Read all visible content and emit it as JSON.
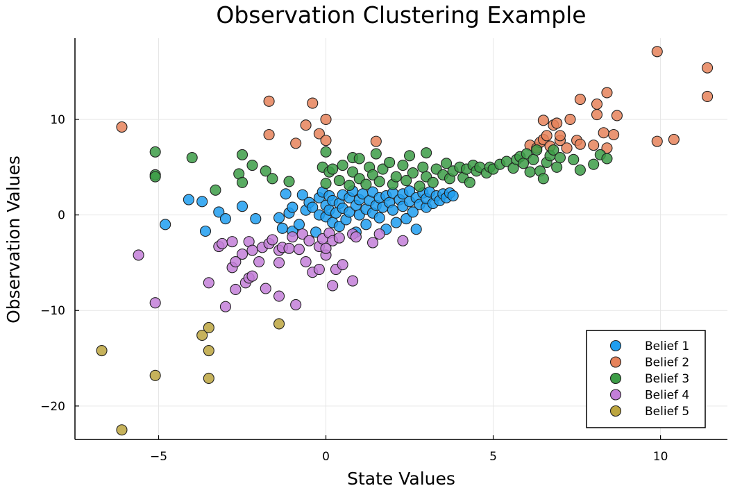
{
  "chart_data": {
    "type": "scatter",
    "title": "Observation Clustering Example",
    "xlabel": "State Values",
    "ylabel": "Observation Values",
    "xlim": [
      -7.5,
      12
    ],
    "ylim": [
      -23.5,
      18.5
    ],
    "xticks": [
      -5,
      0,
      5,
      10
    ],
    "xtick_labels": [
      "−5",
      "0",
      "5",
      "10"
    ],
    "yticks": [
      -20,
      -10,
      0,
      10
    ],
    "ytick_labels": [
      "−20",
      "−10",
      "0",
      "10"
    ],
    "grid": true,
    "legend_position": "bottom-right",
    "series": [
      {
        "name": "Belief 1",
        "color": "#1f9ef0",
        "points": [
          [
            -4.8,
            -1.0
          ],
          [
            -4.1,
            1.6
          ],
          [
            -3.7,
            1.4
          ],
          [
            -3.6,
            -1.7
          ],
          [
            -3.2,
            0.3
          ],
          [
            -3.0,
            -0.4
          ],
          [
            -2.5,
            0.9
          ],
          [
            -2.1,
            -0.4
          ],
          [
            -1.4,
            -0.3
          ],
          [
            -1.3,
            -1.4
          ],
          [
            -1.2,
            2.2
          ],
          [
            -1.1,
            0.2
          ],
          [
            -1.0,
            0.8
          ],
          [
            -1.0,
            -1.7
          ],
          [
            -0.8,
            -1.0
          ],
          [
            -0.7,
            2.1
          ],
          [
            -0.6,
            0.5
          ],
          [
            -0.5,
            1.3
          ],
          [
            -0.4,
            0.8
          ],
          [
            -0.3,
            -1.8
          ],
          [
            -0.2,
            1.8
          ],
          [
            -0.2,
            0.0
          ],
          [
            -0.1,
            2.4
          ],
          [
            0.0,
            -0.2
          ],
          [
            0.0,
            1.0
          ],
          [
            0.1,
            2.0
          ],
          [
            0.1,
            0.5
          ],
          [
            0.2,
            1.5
          ],
          [
            0.2,
            -0.8
          ],
          [
            0.3,
            0.2
          ],
          [
            0.4,
            1.2
          ],
          [
            0.4,
            -1.2
          ],
          [
            0.5,
            0.7
          ],
          [
            0.5,
            2.1
          ],
          [
            0.6,
            -0.5
          ],
          [
            0.7,
            1.8
          ],
          [
            0.7,
            0.3
          ],
          [
            0.8,
            2.5
          ],
          [
            0.9,
            1.0
          ],
          [
            0.9,
            -1.8
          ],
          [
            1.0,
            1.6
          ],
          [
            1.0,
            0.0
          ],
          [
            1.1,
            2.2
          ],
          [
            1.2,
            0.6
          ],
          [
            1.2,
            -1.0
          ],
          [
            1.3,
            1.5
          ],
          [
            1.4,
            2.4
          ],
          [
            1.4,
            0.2
          ],
          [
            1.5,
            1.0
          ],
          [
            1.6,
            1.8
          ],
          [
            1.6,
            -0.3
          ],
          [
            1.7,
            0.8
          ],
          [
            1.8,
            2.0
          ],
          [
            1.8,
            -1.5
          ],
          [
            1.9,
            1.3
          ],
          [
            2.0,
            0.5
          ],
          [
            2.0,
            2.3
          ],
          [
            2.1,
            -0.8
          ],
          [
            2.2,
            1.6
          ],
          [
            2.3,
            0.9
          ],
          [
            2.3,
            2.2
          ],
          [
            2.4,
            -0.4
          ],
          [
            2.5,
            1.4
          ],
          [
            2.5,
            2.5
          ],
          [
            2.6,
            0.3
          ],
          [
            2.7,
            1.8
          ],
          [
            2.7,
            -1.5
          ],
          [
            2.8,
            1.1
          ],
          [
            2.9,
            2.3
          ],
          [
            3.0,
            0.8
          ],
          [
            3.0,
            1.7
          ],
          [
            3.1,
            2.4
          ],
          [
            3.2,
            1.2
          ],
          [
            3.3,
            2.0
          ],
          [
            3.4,
            1.5
          ],
          [
            3.5,
            2.2
          ],
          [
            3.6,
            1.8
          ],
          [
            3.7,
            2.3
          ],
          [
            3.8,
            2.0
          ]
        ]
      },
      {
        "name": "Belief 2",
        "color": "#e6825a",
        "points": [
          [
            -6.1,
            9.2
          ],
          [
            -1.7,
            11.9
          ],
          [
            -1.7,
            8.4
          ],
          [
            -0.9,
            7.5
          ],
          [
            -0.6,
            9.4
          ],
          [
            -0.4,
            11.7
          ],
          [
            -0.2,
            8.5
          ],
          [
            0.0,
            7.8
          ],
          [
            0.0,
            10.0
          ],
          [
            1.5,
            7.7
          ],
          [
            6.1,
            7.3
          ],
          [
            6.3,
            7.0
          ],
          [
            6.4,
            7.6
          ],
          [
            6.5,
            7.9
          ],
          [
            6.5,
            9.9
          ],
          [
            6.6,
            8.3
          ],
          [
            6.7,
            7.2
          ],
          [
            6.8,
            9.4
          ],
          [
            6.9,
            9.6
          ],
          [
            7.0,
            7.8
          ],
          [
            7.0,
            8.3
          ],
          [
            7.2,
            7.0
          ],
          [
            7.3,
            10.0
          ],
          [
            7.5,
            7.8
          ],
          [
            7.6,
            12.1
          ],
          [
            7.6,
            7.4
          ],
          [
            8.0,
            7.3
          ],
          [
            8.1,
            10.5
          ],
          [
            8.1,
            11.6
          ],
          [
            8.3,
            8.6
          ],
          [
            8.4,
            12.8
          ],
          [
            8.4,
            7.0
          ],
          [
            8.6,
            8.4
          ],
          [
            8.7,
            10.4
          ],
          [
            9.9,
            17.1
          ],
          [
            9.9,
            7.7
          ],
          [
            10.4,
            7.9
          ],
          [
            11.4,
            15.4
          ],
          [
            11.4,
            12.4
          ]
        ]
      },
      {
        "name": "Belief 3",
        "color": "#3c9c46",
        "points": [
          [
            -5.1,
            6.6
          ],
          [
            -5.1,
            4.2
          ],
          [
            -5.1,
            4.0
          ],
          [
            -4.0,
            6.0
          ],
          [
            -3.3,
            2.6
          ],
          [
            -2.6,
            4.3
          ],
          [
            -2.5,
            6.3
          ],
          [
            -2.5,
            3.4
          ],
          [
            -2.2,
            5.2
          ],
          [
            -1.8,
            4.6
          ],
          [
            -1.6,
            3.8
          ],
          [
            -1.1,
            3.5
          ],
          [
            -0.1,
            5.0
          ],
          [
            0.0,
            3.3
          ],
          [
            0.0,
            6.6
          ],
          [
            0.1,
            4.5
          ],
          [
            0.2,
            4.8
          ],
          [
            0.4,
            3.6
          ],
          [
            0.5,
            5.2
          ],
          [
            0.7,
            3.1
          ],
          [
            0.8,
            4.5
          ],
          [
            0.8,
            6.0
          ],
          [
            1.0,
            3.8
          ],
          [
            1.0,
            5.9
          ],
          [
            1.2,
            3.2
          ],
          [
            1.3,
            5.0
          ],
          [
            1.4,
            4.2
          ],
          [
            1.5,
            6.4
          ],
          [
            1.6,
            3.5
          ],
          [
            1.7,
            4.8
          ],
          [
            1.9,
            5.5
          ],
          [
            2.0,
            3.2
          ],
          [
            2.1,
            4.0
          ],
          [
            2.3,
            5.2
          ],
          [
            2.4,
            3.6
          ],
          [
            2.5,
            6.2
          ],
          [
            2.6,
            4.4
          ],
          [
            2.8,
            3.0
          ],
          [
            2.9,
            5.0
          ],
          [
            3.0,
            4.0
          ],
          [
            3.0,
            6.5
          ],
          [
            3.2,
            3.4
          ],
          [
            3.3,
            4.8
          ],
          [
            3.5,
            4.2
          ],
          [
            3.6,
            5.4
          ],
          [
            3.7,
            3.8
          ],
          [
            3.8,
            4.6
          ],
          [
            4.0,
            5.0
          ],
          [
            4.1,
            3.9
          ],
          [
            4.2,
            4.8
          ],
          [
            4.3,
            3.4
          ],
          [
            4.4,
            5.2
          ],
          [
            4.5,
            4.6
          ],
          [
            4.6,
            5.0
          ],
          [
            4.8,
            4.4
          ],
          [
            4.9,
            5.0
          ],
          [
            5.0,
            4.8
          ],
          [
            5.2,
            5.3
          ],
          [
            5.4,
            5.6
          ],
          [
            5.6,
            4.9
          ],
          [
            5.7,
            5.8
          ],
          [
            5.8,
            6.1
          ],
          [
            5.9,
            5.4
          ],
          [
            6.0,
            6.4
          ],
          [
            6.1,
            4.5
          ],
          [
            6.2,
            5.8
          ],
          [
            6.3,
            6.8
          ],
          [
            6.4,
            4.6
          ],
          [
            6.5,
            3.8
          ],
          [
            6.6,
            5.5
          ],
          [
            6.7,
            6.2
          ],
          [
            6.8,
            6.8
          ],
          [
            6.9,
            5.0
          ],
          [
            7.0,
            6.0
          ],
          [
            7.4,
            5.8
          ],
          [
            7.6,
            4.7
          ],
          [
            8.0,
            5.3
          ],
          [
            8.2,
            6.3
          ],
          [
            8.4,
            5.9
          ]
        ]
      },
      {
        "name": "Belief 4",
        "color": "#c37fd8",
        "points": [
          [
            -5.6,
            -4.2
          ],
          [
            -5.1,
            -9.2
          ],
          [
            -3.5,
            -7.1
          ],
          [
            -3.2,
            -3.3
          ],
          [
            -3.1,
            -3.0
          ],
          [
            -3.0,
            -9.6
          ],
          [
            -2.8,
            -2.8
          ],
          [
            -2.8,
            -5.5
          ],
          [
            -2.7,
            -4.9
          ],
          [
            -2.7,
            -7.8
          ],
          [
            -2.5,
            -4.1
          ],
          [
            -2.4,
            -7.1
          ],
          [
            -2.3,
            -6.6
          ],
          [
            -2.3,
            -2.8
          ],
          [
            -2.2,
            -3.7
          ],
          [
            -2.2,
            -6.4
          ],
          [
            -2.0,
            -4.9
          ],
          [
            -1.9,
            -3.4
          ],
          [
            -1.8,
            -7.7
          ],
          [
            -1.7,
            -3.0
          ],
          [
            -1.6,
            -2.6
          ],
          [
            -1.4,
            -3.7
          ],
          [
            -1.4,
            -8.5
          ],
          [
            -1.4,
            -5.0
          ],
          [
            -1.3,
            -3.4
          ],
          [
            -1.1,
            -3.5
          ],
          [
            -1.0,
            -2.3
          ],
          [
            -0.9,
            -9.4
          ],
          [
            -0.8,
            -3.6
          ],
          [
            -0.7,
            -2.0
          ],
          [
            -0.6,
            -4.9
          ],
          [
            -0.5,
            -2.7
          ],
          [
            -0.4,
            -6.0
          ],
          [
            -0.2,
            -5.7
          ],
          [
            -0.2,
            -3.3
          ],
          [
            -0.1,
            -2.5
          ],
          [
            0.0,
            -4.2
          ],
          [
            0.0,
            -3.5
          ],
          [
            0.1,
            -1.9
          ],
          [
            0.2,
            -2.7
          ],
          [
            0.2,
            -7.4
          ],
          [
            0.3,
            -5.7
          ],
          [
            0.4,
            -2.4
          ],
          [
            0.5,
            -5.2
          ],
          [
            0.8,
            -6.9
          ],
          [
            0.8,
            -2.0
          ],
          [
            0.9,
            -2.3
          ],
          [
            1.4,
            -2.9
          ],
          [
            1.6,
            -2.0
          ],
          [
            2.3,
            -2.7
          ]
        ]
      },
      {
        "name": "Belief 5",
        "color": "#bca53e",
        "points": [
          [
            -6.7,
            -14.2
          ],
          [
            -6.1,
            -22.5
          ],
          [
            -5.1,
            -16.8
          ],
          [
            -3.7,
            -12.6
          ],
          [
            -3.5,
            -11.8
          ],
          [
            -3.5,
            -14.2
          ],
          [
            -3.5,
            -17.1
          ],
          [
            -1.4,
            -11.4
          ]
        ]
      }
    ]
  }
}
